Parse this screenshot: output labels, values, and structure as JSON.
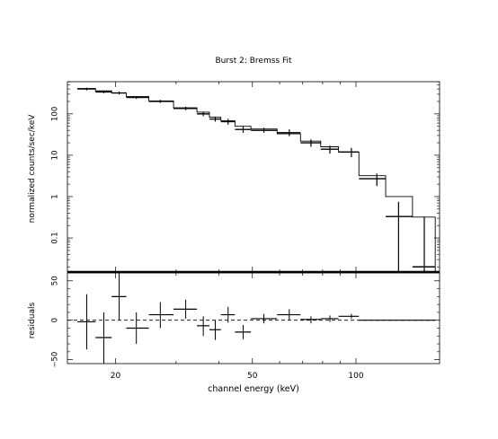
{
  "chart_data": {
    "type": "line",
    "title": "Burst 2: Bremss Fit",
    "xlabel": "channel energy (keV)",
    "x_scale": "log",
    "xlim": [
      14.5,
      175
    ],
    "x_ticks": [
      20,
      50,
      100
    ],
    "x_tick_labels": [
      "20",
      "50",
      "100"
    ],
    "colors": {
      "data": "#000000",
      "model": "#000000",
      "baseline": "#000000"
    },
    "panels": [
      {
        "name": "spectrum",
        "ylabel": "normalized counts/sec/keV",
        "y_scale": "log",
        "ylim": [
          0.015,
          600
        ],
        "y_ticks": [
          0.1,
          1,
          10,
          100
        ],
        "y_tick_labels": [
          "0.1",
          "1",
          "10",
          "100"
        ],
        "data_series": [
          {
            "x": 16.5,
            "x_lo": 15.5,
            "x_hi": 17.5,
            "y": 400,
            "y_lo": 370,
            "y_hi": 430
          },
          {
            "x": 18.5,
            "x_lo": 17.5,
            "x_hi": 19.5,
            "y": 340,
            "y_lo": 315,
            "y_hi": 365
          },
          {
            "x": 20.5,
            "x_lo": 19.5,
            "x_hi": 21.5,
            "y": 320,
            "y_lo": 295,
            "y_hi": 345
          },
          {
            "x": 23.0,
            "x_lo": 21.5,
            "x_hi": 25.0,
            "y": 250,
            "y_lo": 230,
            "y_hi": 270
          },
          {
            "x": 27.0,
            "x_lo": 25.0,
            "x_hi": 29.5,
            "y": 200,
            "y_lo": 185,
            "y_hi": 218
          },
          {
            "x": 32.0,
            "x_lo": 29.5,
            "x_hi": 34.5,
            "y": 135,
            "y_lo": 123,
            "y_hi": 148
          },
          {
            "x": 36.0,
            "x_lo": 34.5,
            "x_hi": 37.5,
            "y": 100,
            "y_lo": 88,
            "y_hi": 113
          },
          {
            "x": 39.0,
            "x_lo": 37.5,
            "x_hi": 40.5,
            "y": 75,
            "y_lo": 65,
            "y_hi": 86
          },
          {
            "x": 42.5,
            "x_lo": 40.5,
            "x_hi": 44.5,
            "y": 65,
            "y_lo": 55,
            "y_hi": 76
          },
          {
            "x": 47.0,
            "x_lo": 44.5,
            "x_hi": 49.5,
            "y": 42,
            "y_lo": 35,
            "y_hi": 49
          },
          {
            "x": 54.0,
            "x_lo": 49.5,
            "x_hi": 59.0,
            "y": 40,
            "y_lo": 35,
            "y_hi": 46
          },
          {
            "x": 64.0,
            "x_lo": 59.0,
            "x_hi": 69.0,
            "y": 35,
            "y_lo": 29,
            "y_hi": 42
          },
          {
            "x": 74.0,
            "x_lo": 69.0,
            "x_hi": 79.0,
            "y": 20,
            "y_lo": 16,
            "y_hi": 24
          },
          {
            "x": 84.0,
            "x_lo": 79.0,
            "x_hi": 89.0,
            "y": 14,
            "y_lo": 11,
            "y_hi": 17
          },
          {
            "x": 97.0,
            "x_lo": 89.0,
            "x_hi": 102.0,
            "y": 12,
            "y_lo": 9,
            "y_hi": 15
          },
          {
            "x": 115.0,
            "x_lo": 102.0,
            "x_hi": 122.0,
            "y": 2.7,
            "y_lo": 1.8,
            "y_hi": 3.6
          },
          {
            "x": 133.0,
            "x_lo": 122.0,
            "x_hi": 146.0,
            "y": 0.33,
            "y_lo": 0.015,
            "y_hi": 0.75
          },
          {
            "x": 158.0,
            "x_lo": 146.0,
            "x_hi": 170.0,
            "y": 0.02,
            "y_lo": 0.015,
            "y_hi": 0.32
          }
        ],
        "model_series": [
          {
            "x_lo": 15.5,
            "x_hi": 17.5,
            "y": 410
          },
          {
            "x_lo": 17.5,
            "x_hi": 19.5,
            "y": 360
          },
          {
            "x_lo": 19.5,
            "x_hi": 21.5,
            "y": 320
          },
          {
            "x_lo": 21.5,
            "x_hi": 25.0,
            "y": 262
          },
          {
            "x_lo": 25.0,
            "x_hi": 29.5,
            "y": 205
          },
          {
            "x_lo": 29.5,
            "x_hi": 34.5,
            "y": 140
          },
          {
            "x_lo": 34.5,
            "x_hi": 37.5,
            "y": 110
          },
          {
            "x_lo": 37.5,
            "x_hi": 40.5,
            "y": 83
          },
          {
            "x_lo": 40.5,
            "x_hi": 44.5,
            "y": 68
          },
          {
            "x_lo": 44.5,
            "x_hi": 49.5,
            "y": 50
          },
          {
            "x_lo": 49.5,
            "x_hi": 59.0,
            "y": 43
          },
          {
            "x_lo": 59.0,
            "x_hi": 69.0,
            "y": 33
          },
          {
            "x_lo": 69.0,
            "x_hi": 79.0,
            "y": 22
          },
          {
            "x_lo": 79.0,
            "x_hi": 89.0,
            "y": 16
          },
          {
            "x_lo": 89.0,
            "x_hi": 102.0,
            "y": 12
          },
          {
            "x_lo": 102.0,
            "x_hi": 122.0,
            "y": 3.2
          },
          {
            "x_lo": 122.0,
            "x_hi": 146.0,
            "y": 1.0
          },
          {
            "x_lo": 146.0,
            "x_hi": 170.0,
            "y": 0.32
          }
        ]
      },
      {
        "name": "residuals",
        "ylabel": "residuals",
        "y_scale": "linear",
        "ylim": [
          -55,
          60
        ],
        "y_ticks": [
          -50,
          0,
          50
        ],
        "y_tick_labels": [
          "−50",
          "0",
          "50"
        ],
        "zero_line": true,
        "data_series": [
          {
            "x": 16.5,
            "x_lo": 15.5,
            "x_hi": 17.5,
            "y": -2,
            "y_lo": -37,
            "y_hi": 33
          },
          {
            "x": 18.5,
            "x_lo": 17.5,
            "x_hi": 19.5,
            "y": -22,
            "y_lo": -55,
            "y_hi": 10
          },
          {
            "x": 20.5,
            "x_lo": 19.5,
            "x_hi": 21.5,
            "y": 30,
            "y_lo": 0,
            "y_hi": 60
          },
          {
            "x": 23.0,
            "x_lo": 21.5,
            "x_hi": 25.0,
            "y": -10,
            "y_lo": -30,
            "y_hi": 10
          },
          {
            "x": 27.0,
            "x_lo": 25.0,
            "x_hi": 29.5,
            "y": 7,
            "y_lo": -10,
            "y_hi": 23
          },
          {
            "x": 32.0,
            "x_lo": 29.5,
            "x_hi": 34.5,
            "y": 14,
            "y_lo": 2,
            "y_hi": 26
          },
          {
            "x": 36.0,
            "x_lo": 34.5,
            "x_hi": 37.5,
            "y": -7,
            "y_lo": -20,
            "y_hi": 5
          },
          {
            "x": 39.0,
            "x_lo": 37.5,
            "x_hi": 40.5,
            "y": -12,
            "y_lo": -25,
            "y_hi": 0
          },
          {
            "x": 42.5,
            "x_lo": 40.5,
            "x_hi": 44.5,
            "y": 7,
            "y_lo": -3,
            "y_hi": 17
          },
          {
            "x": 47.0,
            "x_lo": 44.5,
            "x_hi": 49.5,
            "y": -15,
            "y_lo": -24,
            "y_hi": -6
          },
          {
            "x": 54.0,
            "x_lo": 49.5,
            "x_hi": 59.0,
            "y": 2,
            "y_lo": -4,
            "y_hi": 8
          },
          {
            "x": 64.0,
            "x_lo": 59.0,
            "x_hi": 69.0,
            "y": 7,
            "y_lo": 0,
            "y_hi": 14
          },
          {
            "x": 74.0,
            "x_lo": 69.0,
            "x_hi": 79.0,
            "y": 1,
            "y_lo": -4,
            "y_hi": 5
          },
          {
            "x": 84.0,
            "x_lo": 79.0,
            "x_hi": 89.0,
            "y": 2,
            "y_lo": -2,
            "y_hi": 6
          },
          {
            "x": 97.0,
            "x_lo": 89.0,
            "x_hi": 102.0,
            "y": 5,
            "y_lo": 2,
            "y_hi": 8
          },
          {
            "x": 115.0,
            "x_lo": 102.0,
            "x_hi": 122.0,
            "y": 0,
            "y_lo": 0,
            "y_hi": 0
          },
          {
            "x": 133.0,
            "x_lo": 122.0,
            "x_hi": 146.0,
            "y": 0,
            "y_lo": 0,
            "y_hi": 0
          },
          {
            "x": 158.0,
            "x_lo": 146.0,
            "x_hi": 170.0,
            "y": 0,
            "y_lo": 0,
            "y_hi": 0
          }
        ]
      }
    ]
  }
}
